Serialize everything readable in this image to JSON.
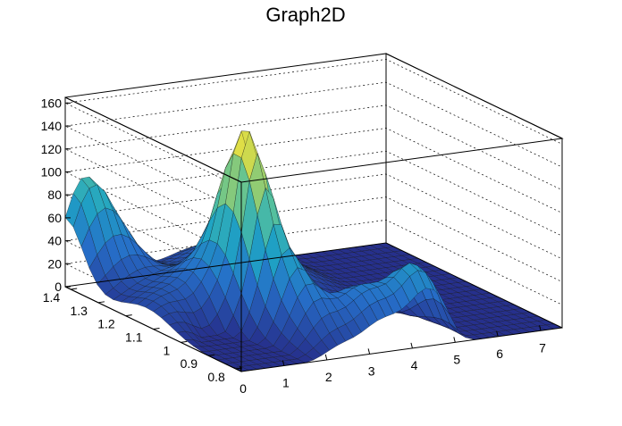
{
  "chart_data": {
    "type": "surface3d",
    "title": "Graph2D",
    "xlabel": "",
    "ylabel": "",
    "zlabel": "",
    "x_ticks": [
      "0",
      "1",
      "2",
      "3",
      "4",
      "5",
      "6",
      "7"
    ],
    "y_ticks": [
      "0.8",
      "0.9",
      "1",
      "1.1",
      "1.2",
      "1.3",
      "1.4"
    ],
    "z_ticks": [
      "0",
      "20",
      "40",
      "60",
      "80",
      "100",
      "120",
      "140",
      "160"
    ],
    "xlim": [
      0,
      7.5
    ],
    "ylim": [
      0.78,
      1.42
    ],
    "zlim": [
      0,
      165
    ],
    "grid": true,
    "colormap": "viridis-like",
    "series": [
      {
        "values_approx": "surface with peaks ~165 at x~2, y~1.1; ~84 at x~0.3, y~1.42; ~80 at x~4.5, y~0.8; flat ~0 for x>5"
      }
    ]
  },
  "colors": {
    "low": "#2e3f9c",
    "mid": "#1fa3c4",
    "midhigh": "#57c19c",
    "high": "#f8e53a"
  }
}
